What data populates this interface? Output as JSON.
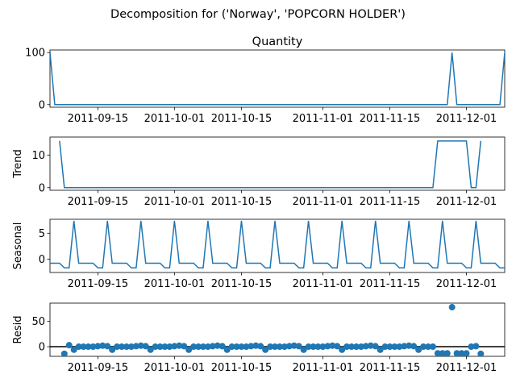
{
  "chart_data": {
    "type": "line",
    "suptitle": "Decomposition for ('Norway', 'POPCORN HOLDER')",
    "colors": {
      "series": "#1f77b4",
      "zero_line": "#000000"
    },
    "x_start": "2011-09-05",
    "x_end": "2011-12-09",
    "x_tick_dates": [
      "2011-09-15",
      "2011-10-01",
      "2011-10-15",
      "2011-11-01",
      "2011-11-15",
      "2011-12-01"
    ],
    "x_tick_labels": [
      "2011-09-15",
      "2011-10-01",
      "2011-10-15",
      "2011-11-01",
      "2011-11-15",
      "2011-12-01"
    ],
    "panels": [
      {
        "id": "observed",
        "title": "Quantity",
        "ylabel": "",
        "kind": "line",
        "ylim": [
          -5,
          105
        ],
        "yticks": [
          0,
          100
        ],
        "points": [
          [
            "2011-09-05",
            100
          ],
          [
            "2011-09-06",
            0
          ],
          [
            "2011-12-04",
            0
          ],
          [
            "2011-12-05",
            0
          ],
          [
            "2011-11-27",
            0
          ],
          [
            "2011-11-28",
            100
          ],
          [
            "2011-11-29",
            0
          ],
          [
            "2011-12-08",
            0
          ],
          [
            "2011-12-09",
            100
          ]
        ]
      },
      {
        "id": "trend",
        "title": "",
        "ylabel": "Trend",
        "kind": "line",
        "ylim": [
          -0.8,
          15.5
        ],
        "yticks": [
          0,
          10
        ],
        "points": [
          [
            "2011-09-07",
            14.3
          ],
          [
            "2011-09-08",
            0
          ],
          [
            "2011-11-24",
            0
          ],
          [
            "2011-11-25",
            14.3
          ],
          [
            "2011-12-01",
            14.3
          ],
          [
            "2011-12-02",
            0
          ],
          [
            "2011-12-03",
            0
          ],
          [
            "2011-12-04",
            14.3
          ]
        ]
      },
      {
        "id": "seasonal",
        "title": "",
        "ylabel": "Seasonal",
        "kind": "line",
        "ylim": [
          -2.6,
          7.7
        ],
        "yticks": [
          0,
          5
        ],
        "cycle": [
          -0.8,
          -0.8,
          -0.8,
          -1.7,
          -1.7,
          7.4,
          -0.8
        ],
        "cycle_start": "2011-09-05",
        "points": []
      },
      {
        "id": "resid",
        "title": "",
        "ylabel": "Resid",
        "kind": "scatter",
        "ylim": [
          -19,
          86
        ],
        "yticks": [
          0,
          50
        ],
        "zero_line": true,
        "points": [
          [
            "2011-09-08",
            -14
          ],
          [
            "2011-09-09",
            3
          ],
          [
            "2011-09-10",
            -6
          ],
          [
            "2011-09-11",
            0
          ],
          [
            "2011-09-12",
            0
          ],
          [
            "2011-09-13",
            0
          ],
          [
            "2011-09-14",
            0
          ],
          [
            "2011-09-15",
            1
          ],
          [
            "2011-09-16",
            2
          ],
          [
            "2011-09-17",
            1
          ],
          [
            "2011-09-18",
            -6
          ],
          [
            "2011-09-19",
            0
          ],
          [
            "2011-09-20",
            0
          ],
          [
            "2011-09-21",
            0
          ],
          [
            "2011-09-22",
            0
          ],
          [
            "2011-09-23",
            1
          ],
          [
            "2011-09-24",
            2
          ],
          [
            "2011-09-25",
            1
          ],
          [
            "2011-09-26",
            -6
          ],
          [
            "2011-09-27",
            0
          ],
          [
            "2011-09-28",
            0
          ],
          [
            "2011-09-29",
            0
          ],
          [
            "2011-09-30",
            0
          ],
          [
            "2011-10-01",
            1
          ],
          [
            "2011-10-02",
            2
          ],
          [
            "2011-10-03",
            1
          ],
          [
            "2011-10-04",
            -6
          ],
          [
            "2011-10-05",
            0
          ],
          [
            "2011-10-06",
            0
          ],
          [
            "2011-10-07",
            0
          ],
          [
            "2011-10-08",
            0
          ],
          [
            "2011-10-09",
            1
          ],
          [
            "2011-10-10",
            2
          ],
          [
            "2011-10-11",
            1
          ],
          [
            "2011-10-12",
            -6
          ],
          [
            "2011-10-13",
            0
          ],
          [
            "2011-10-14",
            0
          ],
          [
            "2011-10-15",
            0
          ],
          [
            "2011-10-16",
            0
          ],
          [
            "2011-10-17",
            1
          ],
          [
            "2011-10-18",
            2
          ],
          [
            "2011-10-19",
            1
          ],
          [
            "2011-10-20",
            -6
          ],
          [
            "2011-10-21",
            0
          ],
          [
            "2011-10-22",
            0
          ],
          [
            "2011-10-23",
            0
          ],
          [
            "2011-10-24",
            0
          ],
          [
            "2011-10-25",
            1
          ],
          [
            "2011-10-26",
            2
          ],
          [
            "2011-10-27",
            1
          ],
          [
            "2011-10-28",
            -6
          ],
          [
            "2011-10-29",
            0
          ],
          [
            "2011-10-30",
            0
          ],
          [
            "2011-10-31",
            0
          ],
          [
            "2011-11-01",
            0
          ],
          [
            "2011-11-02",
            1
          ],
          [
            "2011-11-03",
            2
          ],
          [
            "2011-11-04",
            1
          ],
          [
            "2011-11-05",
            -6
          ],
          [
            "2011-11-06",
            0
          ],
          [
            "2011-11-07",
            0
          ],
          [
            "2011-11-08",
            0
          ],
          [
            "2011-11-09",
            0
          ],
          [
            "2011-11-10",
            1
          ],
          [
            "2011-11-11",
            2
          ],
          [
            "2011-11-12",
            1
          ],
          [
            "2011-11-13",
            -6
          ],
          [
            "2011-11-14",
            0
          ],
          [
            "2011-11-15",
            0
          ],
          [
            "2011-11-16",
            0
          ],
          [
            "2011-11-17",
            0
          ],
          [
            "2011-11-18",
            1
          ],
          [
            "2011-11-19",
            2
          ],
          [
            "2011-11-20",
            1
          ],
          [
            "2011-11-21",
            -6
          ],
          [
            "2011-11-22",
            0
          ],
          [
            "2011-11-23",
            0
          ],
          [
            "2011-11-24",
            0
          ],
          [
            "2011-11-25",
            -13
          ],
          [
            "2011-11-26",
            -13
          ],
          [
            "2011-11-27",
            -13
          ],
          [
            "2011-11-28",
            78
          ],
          [
            "2011-11-29",
            -13
          ],
          [
            "2011-11-30",
            -13
          ],
          [
            "2011-12-01",
            -13
          ],
          [
            "2011-12-02",
            0
          ],
          [
            "2011-12-03",
            1
          ],
          [
            "2011-12-04",
            -14
          ]
        ]
      }
    ]
  }
}
